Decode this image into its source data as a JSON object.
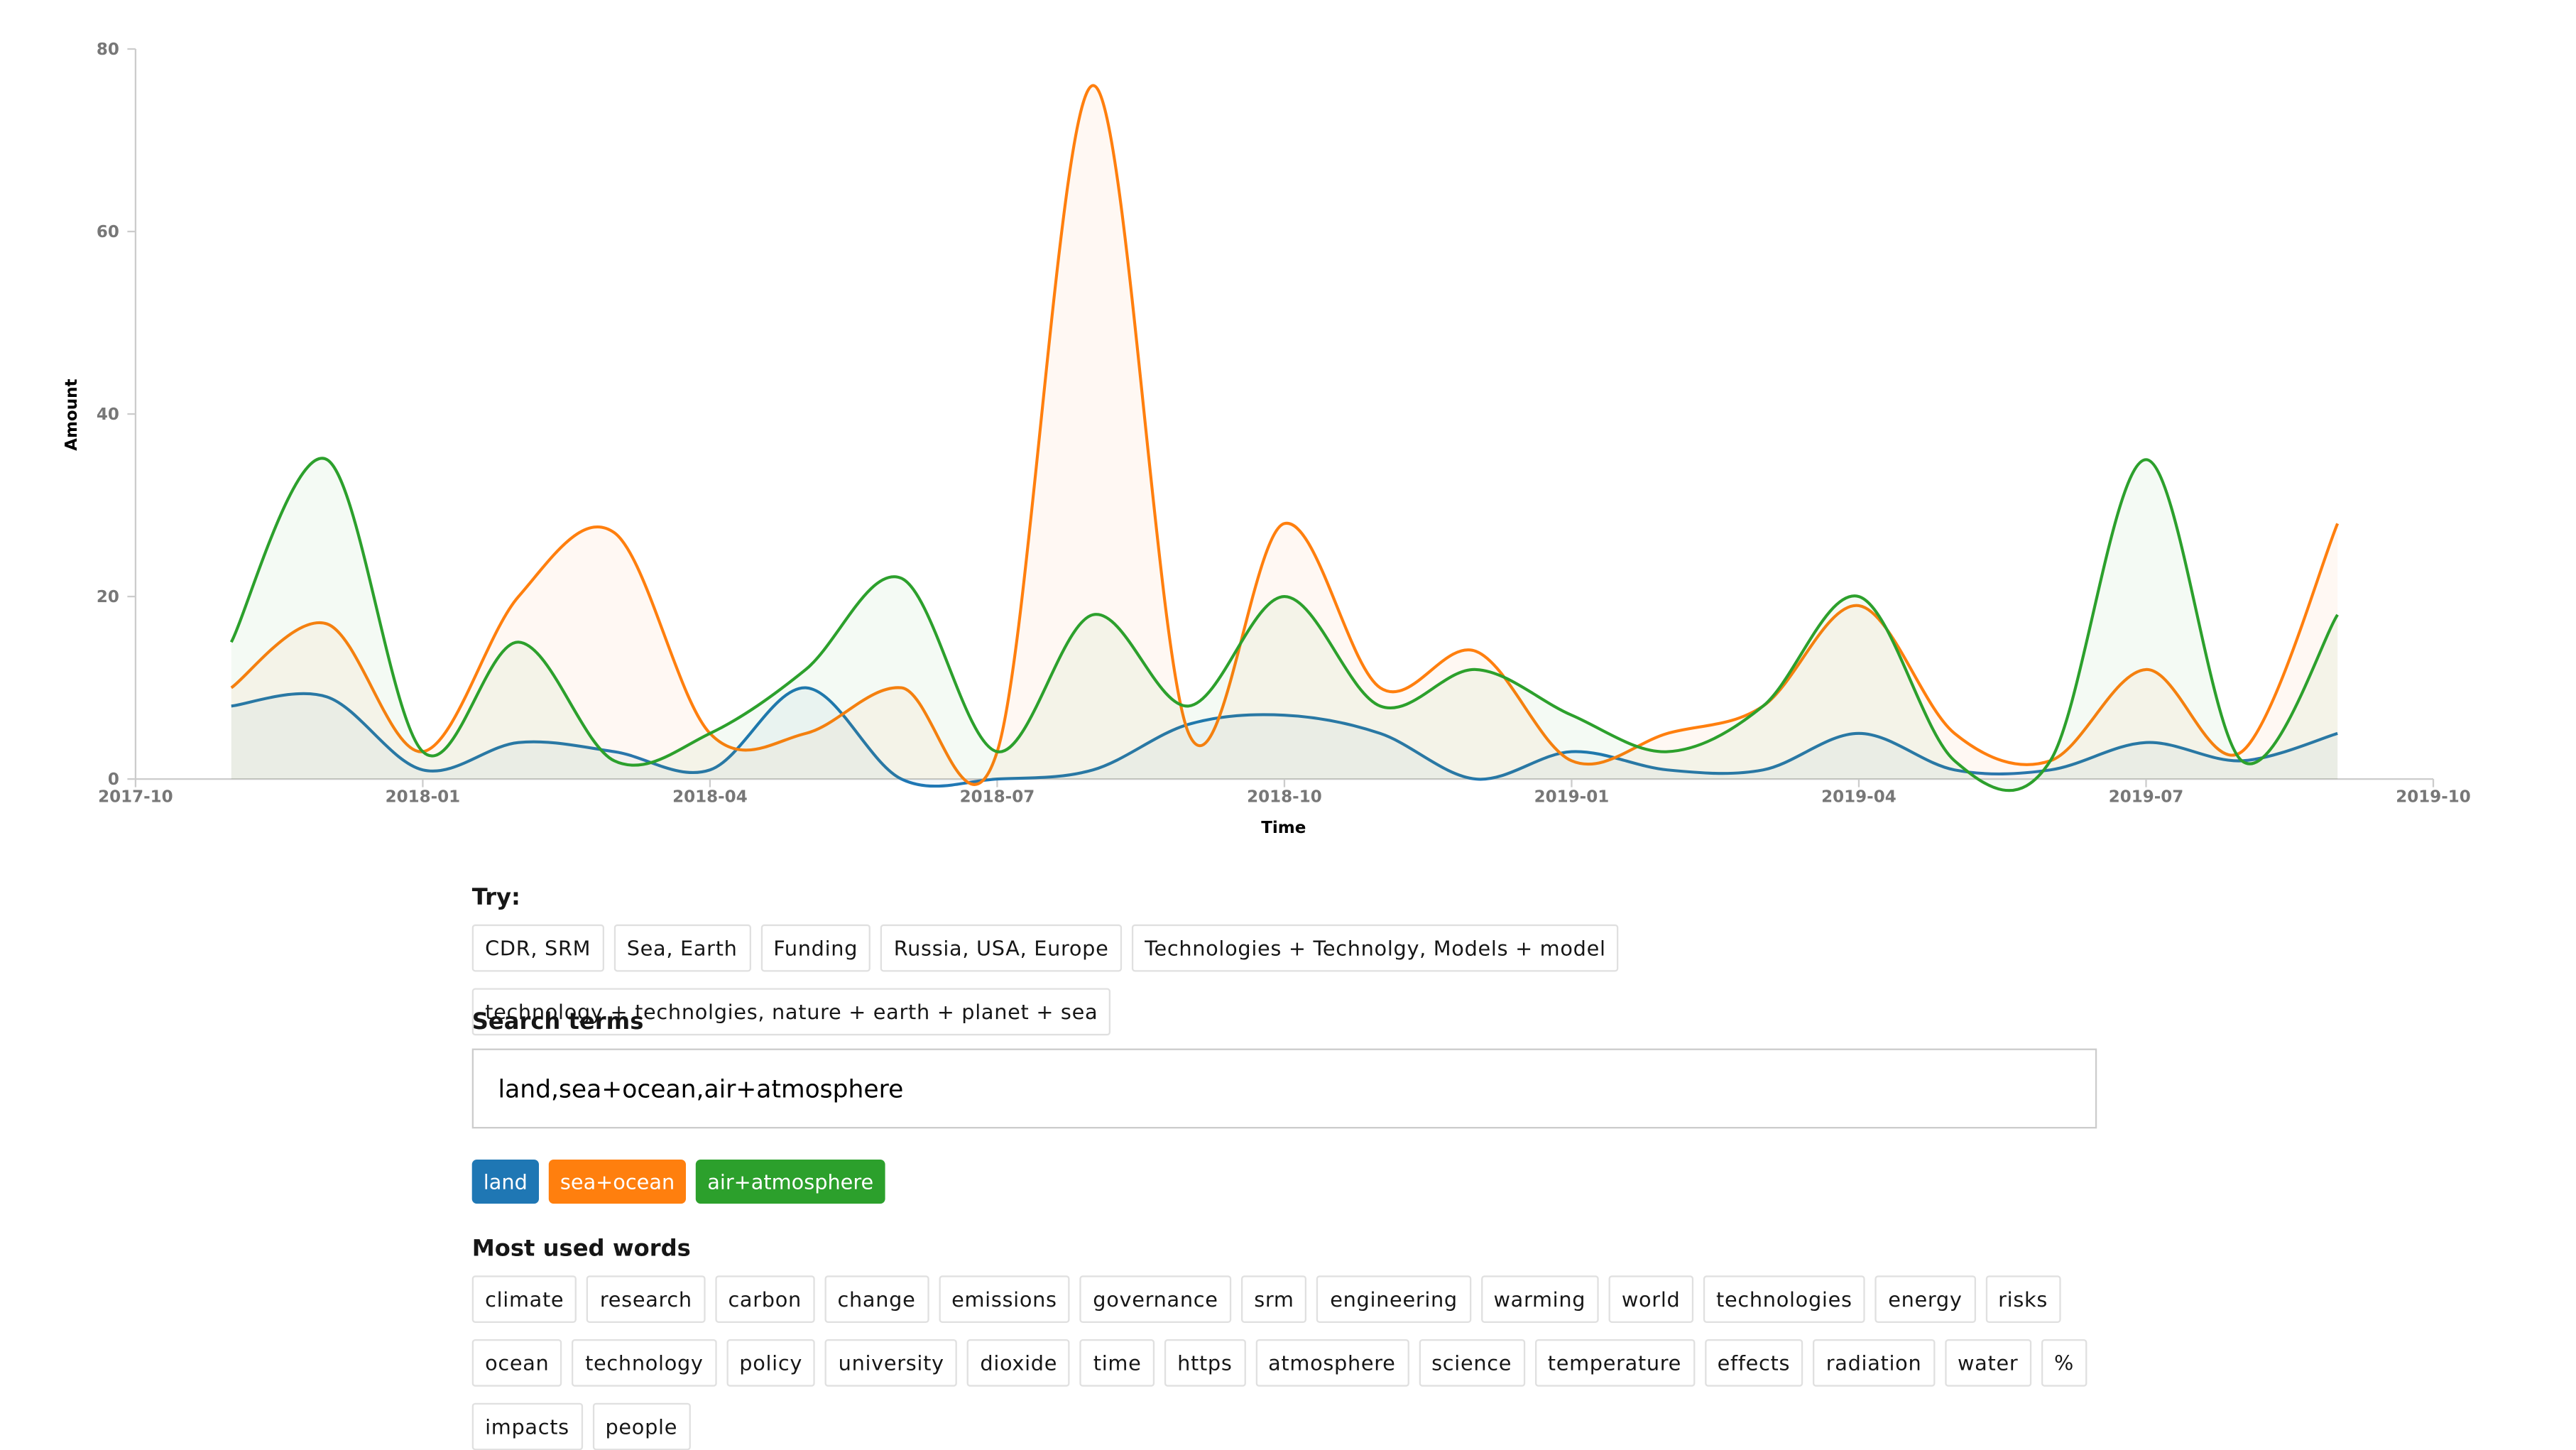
{
  "chart_data": {
    "type": "line",
    "x_label": "Time",
    "y_label": "Amount",
    "x": [
      "2017-11",
      "2017-12",
      "2018-01",
      "2018-02",
      "2018-03",
      "2018-04",
      "2018-05",
      "2018-06",
      "2018-07",
      "2018-08",
      "2018-09",
      "2018-10",
      "2018-11",
      "2018-12",
      "2019-01",
      "2019-02",
      "2019-03",
      "2019-04",
      "2019-05",
      "2019-06",
      "2019-07",
      "2019-08",
      "2019-09"
    ],
    "series": [
      {
        "name": "land",
        "color": "#1f77b4",
        "values": [
          8,
          9,
          1,
          4,
          3,
          1,
          10,
          0,
          0,
          1,
          6,
          7,
          5,
          0,
          3,
          1,
          1,
          5,
          1,
          1,
          4,
          2,
          5
        ]
      },
      {
        "name": "sea+ocean",
        "color": "#ff7f0e",
        "values": [
          10,
          17,
          3,
          20,
          27,
          5,
          5,
          10,
          3,
          76,
          5,
          28,
          10,
          14,
          2,
          5,
          8,
          19,
          5,
          2,
          12,
          3,
          28
        ]
      },
      {
        "name": "air+atmosphere",
        "color": "#2ca02c",
        "values": [
          15,
          35,
          3,
          15,
          2,
          5,
          12,
          22,
          3,
          18,
          8,
          20,
          8,
          12,
          7,
          3,
          8,
          20,
          2,
          2,
          35,
          2,
          18
        ]
      }
    ],
    "xlim": [
      "2017-10",
      "2019-10"
    ],
    "xticks": [
      "2017-10",
      "2018-01",
      "2018-04",
      "2018-07",
      "2018-10",
      "2019-01",
      "2019-04",
      "2019-07",
      "2019-10"
    ],
    "ylim": [
      0,
      80
    ],
    "yticks": [
      0,
      20,
      40,
      60,
      80
    ]
  },
  "try": {
    "label": "Try:",
    "options": [
      "CDR, SRM",
      "Sea, Earth",
      "Funding",
      "Russia, USA, Europe",
      "Technologies + Technolgy, Models + model",
      "technology + technolgies, nature + earth + planet + sea"
    ]
  },
  "search": {
    "label": "Search terms",
    "value": "land,sea+ocean,air+atmosphere"
  },
  "most_used": {
    "label": "Most used words",
    "words": [
      "climate",
      "research",
      "carbon",
      "change",
      "emissions",
      "governance",
      "srm",
      "engineering",
      "warming",
      "world",
      "technologies",
      "energy",
      "risks",
      "ocean",
      "technology",
      "policy",
      "university",
      "dioxide",
      "time",
      "https",
      "atmosphere",
      "science",
      "temperature",
      "effects",
      "radiation",
      "water",
      "%",
      "impacts",
      "people"
    ]
  }
}
